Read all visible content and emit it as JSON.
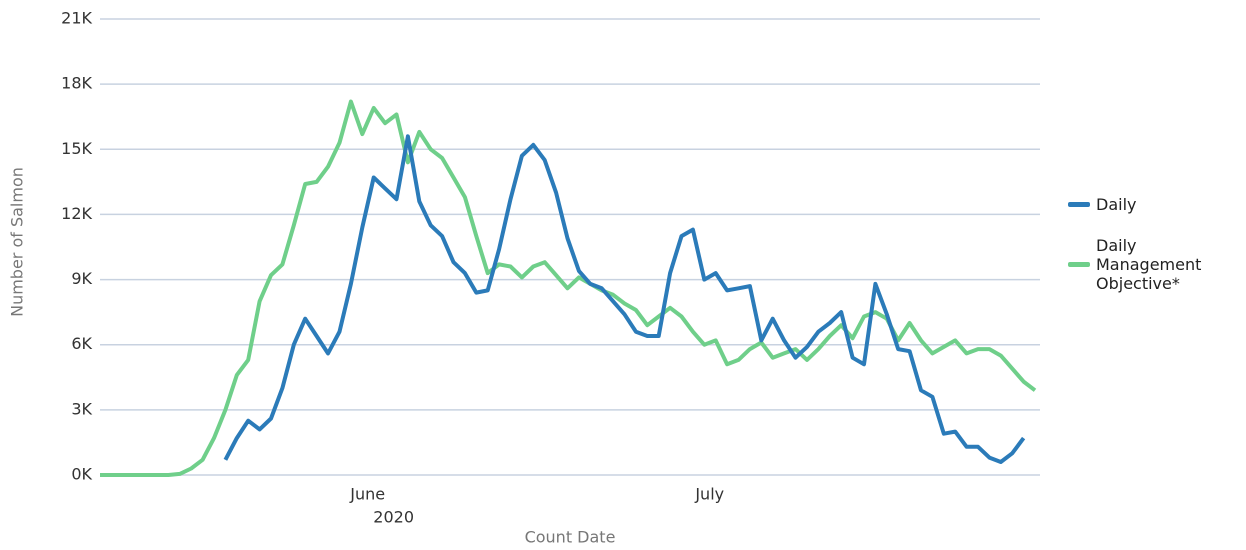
{
  "chart_data": {
    "type": "line",
    "x_label": "Count Date",
    "y_label": "Number of Salmon",
    "x_group_label": "2020",
    "categories": [
      null,
      null,
      null,
      null,
      null,
      null,
      null,
      null,
      null,
      null,
      null,
      null,
      null,
      null,
      null,
      null,
      null,
      null,
      null,
      null,
      null,
      null,
      null,
      null,
      "June",
      null,
      null,
      null,
      null,
      null,
      null,
      null,
      null,
      null,
      null,
      null,
      null,
      null,
      null,
      null,
      null,
      null,
      null,
      null,
      null,
      null,
      null,
      null,
      null,
      null,
      null,
      null,
      null,
      null,
      "July",
      null,
      null,
      null,
      null,
      null,
      null,
      null,
      null,
      null,
      null,
      null,
      null,
      null,
      null,
      null,
      null,
      null,
      null,
      null,
      null,
      null,
      null,
      null,
      null,
      null,
      null,
      null,
      null
    ],
    "series": [
      {
        "name": "Daily",
        "color": "#2b7bb9",
        "values": [
          null,
          null,
          null,
          null,
          null,
          null,
          null,
          null,
          null,
          null,
          null,
          700,
          1700,
          2500,
          2100,
          2600,
          4000,
          6000,
          7200,
          6400,
          5600,
          6600,
          8800,
          11400,
          13700,
          13200,
          12700,
          15600,
          12600,
          11500,
          11000,
          9800,
          9300,
          8400,
          8500,
          10400,
          12700,
          14700,
          15200,
          14500,
          13000,
          10900,
          9400,
          8800,
          8600,
          8000,
          7400,
          6600,
          6400,
          6400,
          9300,
          11000,
          11300,
          9000,
          9300,
          8500,
          8600,
          8700,
          6200,
          7200,
          6200,
          5400,
          5900,
          6600,
          7000,
          7500,
          5400,
          5100,
          8800,
          7400,
          5800,
          5700,
          3900,
          3600,
          1900,
          2000,
          1300,
          1300,
          800,
          600,
          1000,
          1700,
          null
        ]
      },
      {
        "name": "Daily Management Objective*",
        "color": "#6fcf8a",
        "values": [
          0,
          0,
          0,
          0,
          0,
          0,
          0,
          50,
          300,
          700,
          1700,
          3000,
          4600,
          5300,
          8000,
          9200,
          9700,
          11500,
          13400,
          13500,
          14200,
          15300,
          17200,
          15700,
          16900,
          16200,
          16600,
          14400,
          15800,
          15000,
          14600,
          13700,
          12800,
          11000,
          9300,
          9700,
          9600,
          9100,
          9600,
          9800,
          9200,
          8600,
          9100,
          8800,
          8500,
          8300,
          7900,
          7600,
          6900,
          7300,
          7700,
          7300,
          6600,
          6000,
          6200,
          5100,
          5300,
          5800,
          6100,
          5400,
          5600,
          5800,
          5300,
          5800,
          6400,
          6900,
          6300,
          7300,
          7500,
          7200,
          6200,
          7000,
          6200,
          5600,
          5900,
          6200,
          5600,
          5800,
          5800,
          5500,
          4900,
          4300,
          3900
        ]
      }
    ],
    "ylim": [
      0,
      21000
    ],
    "yticks": [
      {
        "value": 0,
        "label": "0K"
      },
      {
        "value": 3000,
        "label": "3K"
      },
      {
        "value": 6000,
        "label": "6K"
      },
      {
        "value": 9000,
        "label": "9K"
      },
      {
        "value": 12000,
        "label": "12K"
      },
      {
        "value": 15000,
        "label": "15K"
      },
      {
        "value": 18000,
        "label": "18K"
      },
      {
        "value": 21000,
        "label": "21K"
      }
    ],
    "grid": true,
    "legend": "right"
  }
}
